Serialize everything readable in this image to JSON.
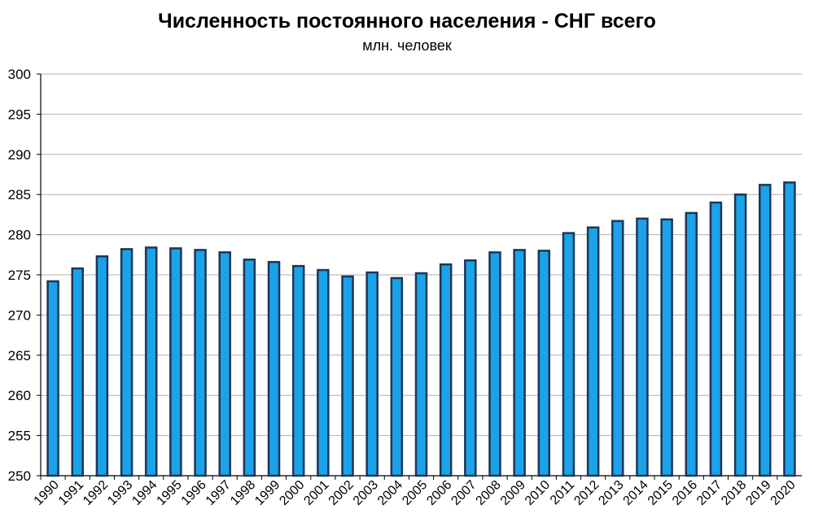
{
  "chart_data": {
    "type": "bar",
    "title": "Численность постоянного населения - СНГ всего",
    "subtitle": "млн. человек",
    "xlabel": "",
    "ylabel": "",
    "ylim": [
      250,
      300
    ],
    "yticks": [
      "250",
      "255",
      "260",
      "265",
      "270",
      "275",
      "280",
      "285",
      "290",
      "295",
      "300"
    ],
    "grid": true,
    "categories": [
      "1990",
      "1991",
      "1992",
      "1993",
      "1994",
      "1995",
      "1996",
      "1997",
      "1998",
      "1999",
      "2000",
      "2001",
      "2002",
      "2003",
      "2004",
      "2005",
      "2006",
      "2007",
      "2008",
      "2009",
      "2010",
      "2011",
      "2012",
      "2013",
      "2014",
      "2015",
      "2016",
      "2017",
      "2018",
      "2019",
      "2020"
    ],
    "values": [
      274.2,
      275.8,
      277.3,
      278.2,
      278.4,
      278.3,
      278.1,
      277.8,
      276.9,
      276.6,
      276.1,
      275.6,
      274.8,
      275.3,
      274.6,
      275.2,
      276.3,
      276.8,
      277.8,
      278.1,
      278.0,
      280.2,
      280.9,
      281.7,
      282.0,
      281.9,
      282.7,
      284.0,
      285.0,
      286.2,
      286.5
    ],
    "colors": {
      "bar_fill": "#1aa3e8",
      "bar_stroke": "#1f3555",
      "grid": "#b0b0b0",
      "axis": "#000000"
    }
  }
}
